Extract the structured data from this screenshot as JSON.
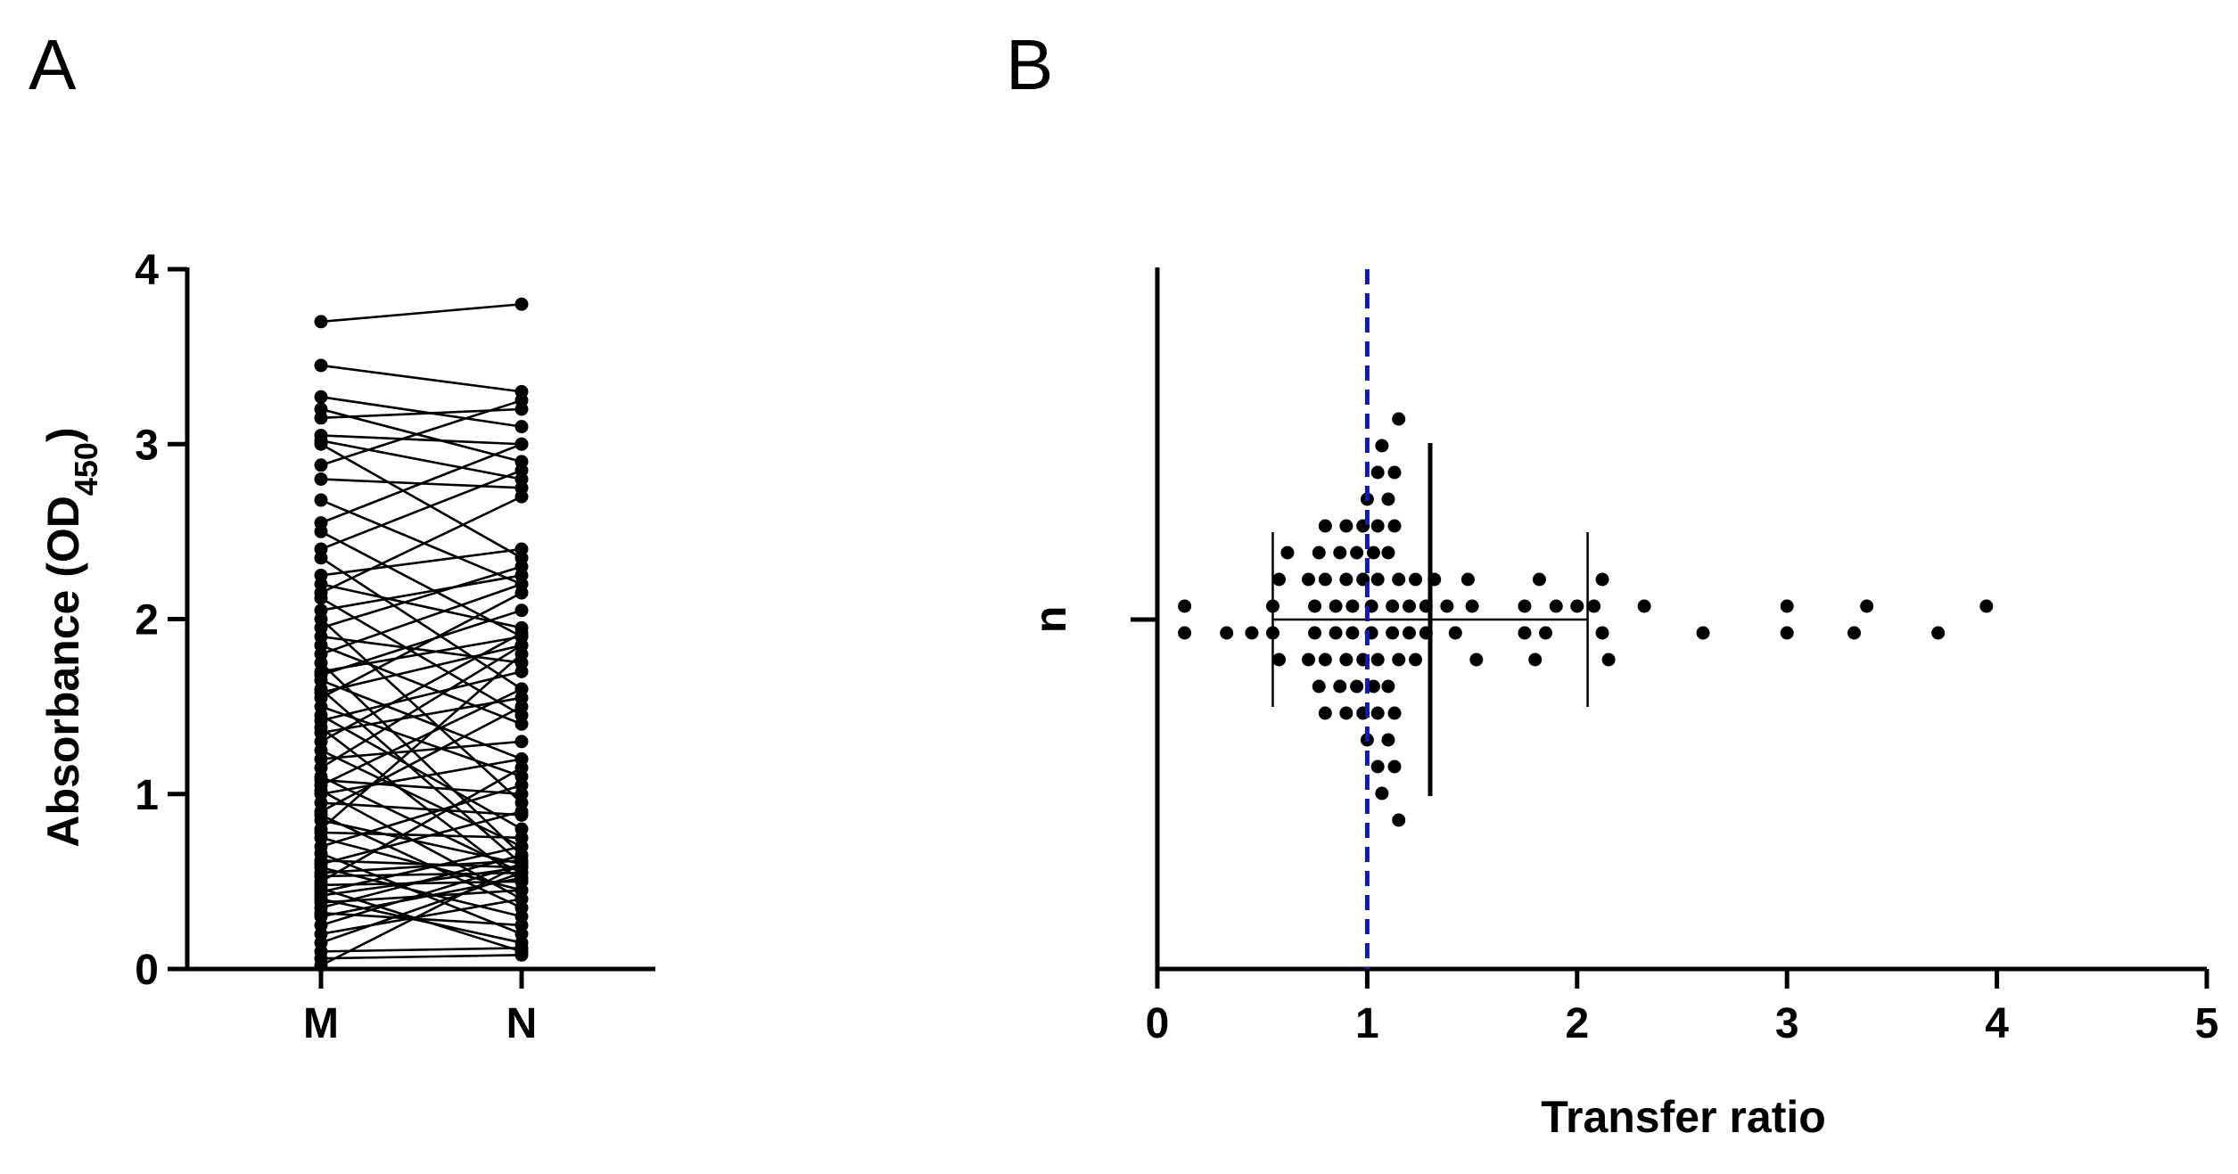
{
  "panels": {
    "a": {
      "letter": "A"
    },
    "b": {
      "letter": "B"
    }
  },
  "chart_data": [
    {
      "panel": "A",
      "type": "line",
      "subtype": "paired before-after",
      "xlabel": "",
      "ylabel": {
        "main": "Absorbance (OD",
        "sub": "450",
        "close": ")"
      },
      "ylim": [
        0,
        4
      ],
      "yticks": [
        "0",
        "1",
        "2",
        "3",
        "4"
      ],
      "categories": [
        "M",
        "N"
      ],
      "marker_color": "#000000",
      "pairs": [
        [
          3.7,
          3.8
        ],
        [
          3.45,
          3.3
        ],
        [
          3.27,
          3.1
        ],
        [
          3.2,
          2.9
        ],
        [
          3.15,
          3.2
        ],
        [
          3.05,
          3.0
        ],
        [
          3.02,
          2.8
        ],
        [
          3.0,
          2.35
        ],
        [
          2.88,
          3.25
        ],
        [
          2.8,
          2.75
        ],
        [
          2.68,
          2.2
        ],
        [
          2.55,
          3.0
        ],
        [
          2.5,
          1.9
        ],
        [
          2.4,
          2.85
        ],
        [
          2.35,
          1.6
        ],
        [
          2.25,
          2.4
        ],
        [
          2.2,
          1.95
        ],
        [
          2.15,
          2.7
        ],
        [
          2.12,
          1.45
        ],
        [
          2.05,
          2.25
        ],
        [
          2.0,
          0.95
        ],
        [
          1.95,
          2.3
        ],
        [
          1.9,
          1.75
        ],
        [
          1.85,
          1.4
        ],
        [
          1.8,
          2.2
        ],
        [
          1.75,
          0.65
        ],
        [
          1.7,
          1.9
        ],
        [
          1.68,
          2.05
        ],
        [
          1.65,
          1.2
        ],
        [
          1.6,
          0.6
        ],
        [
          1.58,
          1.85
        ],
        [
          1.55,
          2.15
        ],
        [
          1.5,
          1.1
        ],
        [
          1.45,
          0.8
        ],
        [
          1.42,
          1.7
        ],
        [
          1.38,
          0.5
        ],
        [
          1.35,
          1.55
        ],
        [
          1.3,
          1.92
        ],
        [
          1.25,
          0.7
        ],
        [
          1.2,
          1.3
        ],
        [
          1.15,
          1.85
        ],
        [
          1.1,
          0.55
        ],
        [
          1.08,
          1.0
        ],
        [
          1.05,
          1.6
        ],
        [
          1.02,
          0.4
        ],
        [
          1.0,
          1.2
        ],
        [
          0.95,
          0.88
        ],
        [
          0.9,
          1.5
        ],
        [
          0.88,
          0.35
        ],
        [
          0.85,
          0.6
        ],
        [
          0.8,
          1.8
        ],
        [
          0.78,
          0.75
        ],
        [
          0.75,
          0.45
        ],
        [
          0.7,
          1.05
        ],
        [
          0.66,
          0.2
        ],
        [
          0.62,
          0.58
        ],
        [
          0.6,
          0.9
        ],
        [
          0.58,
          0.3
        ],
        [
          0.55,
          0.62
        ],
        [
          0.53,
          0.55
        ],
        [
          0.5,
          1.15
        ],
        [
          0.48,
          0.5
        ],
        [
          0.46,
          0.1
        ],
        [
          0.44,
          0.7
        ],
        [
          0.42,
          0.58
        ],
        [
          0.4,
          0.15
        ],
        [
          0.38,
          0.45
        ],
        [
          0.35,
          0.65
        ],
        [
          0.32,
          0.25
        ],
        [
          0.3,
          0.52
        ],
        [
          0.25,
          0.6
        ],
        [
          0.2,
          0.4
        ],
        [
          0.15,
          0.55
        ],
        [
          0.1,
          0.12
        ],
        [
          0.06,
          0.08
        ],
        [
          0.02,
          0.6
        ]
      ]
    },
    {
      "panel": "B",
      "type": "scatter",
      "subtype": "horizontal dot plot",
      "xlabel": "Transfer ratio",
      "ylabel": "n",
      "xlim": [
        0,
        5
      ],
      "xticks": [
        "0",
        "1",
        "2",
        "3",
        "4",
        "5"
      ],
      "marker_color": "#000000",
      "reference_line": {
        "x": 1,
        "color": "#1515c8",
        "style": "dashed"
      },
      "summary": {
        "mean": 1.3,
        "central_line": [
          0.55,
          2.05
        ],
        "inner_error_bars": [
          0.55,
          2.05
        ]
      },
      "points": [
        [
          0.13,
          0.08
        ],
        [
          0.13,
          -0.08
        ],
        [
          0.33,
          -0.08
        ],
        [
          0.45,
          -0.08
        ],
        [
          0.55,
          -0.08
        ],
        [
          0.55,
          0.08
        ],
        [
          0.58,
          0.24
        ],
        [
          0.58,
          -0.24
        ],
        [
          0.62,
          0.4
        ],
        [
          0.72,
          0.24
        ],
        [
          0.72,
          -0.24
        ],
        [
          0.75,
          0.08
        ],
        [
          0.75,
          -0.08
        ],
        [
          0.77,
          0.4
        ],
        [
          0.77,
          -0.4
        ],
        [
          0.8,
          0.56
        ],
        [
          0.8,
          0.24
        ],
        [
          0.8,
          -0.24
        ],
        [
          0.8,
          -0.56
        ],
        [
          0.85,
          0.08
        ],
        [
          0.85,
          -0.08
        ],
        [
          0.87,
          0.4
        ],
        [
          0.87,
          -0.4
        ],
        [
          0.9,
          0.56
        ],
        [
          0.9,
          0.24
        ],
        [
          0.9,
          -0.24
        ],
        [
          0.9,
          -0.56
        ],
        [
          0.93,
          0.08
        ],
        [
          0.93,
          -0.08
        ],
        [
          0.95,
          0.4
        ],
        [
          0.95,
          -0.4
        ],
        [
          0.98,
          0.56
        ],
        [
          0.98,
          0.24
        ],
        [
          0.98,
          -0.24
        ],
        [
          0.98,
          -0.56
        ],
        [
          1.0,
          0.72
        ],
        [
          1.0,
          -0.72
        ],
        [
          1.02,
          0.08
        ],
        [
          1.02,
          -0.08
        ],
        [
          1.03,
          0.4
        ],
        [
          1.03,
          -0.4
        ],
        [
          1.05,
          0.88
        ],
        [
          1.05,
          0.56
        ],
        [
          1.05,
          -0.88
        ],
        [
          1.05,
          0.24
        ],
        [
          1.05,
          -0.24
        ],
        [
          1.05,
          -0.56
        ],
        [
          1.07,
          1.04
        ],
        [
          1.07,
          -1.04
        ],
        [
          1.1,
          0.72
        ],
        [
          1.1,
          0.4
        ],
        [
          1.1,
          -0.4
        ],
        [
          1.1,
          -0.72
        ],
        [
          1.12,
          0.08
        ],
        [
          1.12,
          -0.08
        ],
        [
          1.13,
          0.88
        ],
        [
          1.13,
          0.56
        ],
        [
          1.13,
          -0.56
        ],
        [
          1.13,
          -0.88
        ],
        [
          1.15,
          1.2
        ],
        [
          1.15,
          0.24
        ],
        [
          1.15,
          -0.24
        ],
        [
          1.15,
          -1.2
        ],
        [
          1.2,
          0.08
        ],
        [
          1.2,
          -0.08
        ],
        [
          1.23,
          0.24
        ],
        [
          1.23,
          -0.24
        ],
        [
          1.28,
          0.08
        ],
        [
          1.28,
          -0.08
        ],
        [
          1.32,
          0.24
        ],
        [
          1.38,
          0.08
        ],
        [
          1.42,
          -0.08
        ],
        [
          1.48,
          0.24
        ],
        [
          1.5,
          0.08
        ],
        [
          1.52,
          -0.24
        ],
        [
          1.75,
          0.08
        ],
        [
          1.75,
          -0.08
        ],
        [
          1.8,
          -0.24
        ],
        [
          1.82,
          0.24
        ],
        [
          1.85,
          -0.08
        ],
        [
          1.9,
          0.08
        ],
        [
          2.0,
          0.08
        ],
        [
          2.08,
          0.08
        ],
        [
          2.12,
          0.24
        ],
        [
          2.12,
          -0.08
        ],
        [
          2.15,
          -0.24
        ],
        [
          2.32,
          0.08
        ],
        [
          2.6,
          -0.08
        ],
        [
          3.0,
          0.08
        ],
        [
          3.0,
          -0.08
        ],
        [
          3.32,
          -0.08
        ],
        [
          3.38,
          0.08
        ],
        [
          3.72,
          -0.08
        ],
        [
          3.95,
          0.08
        ]
      ]
    }
  ]
}
